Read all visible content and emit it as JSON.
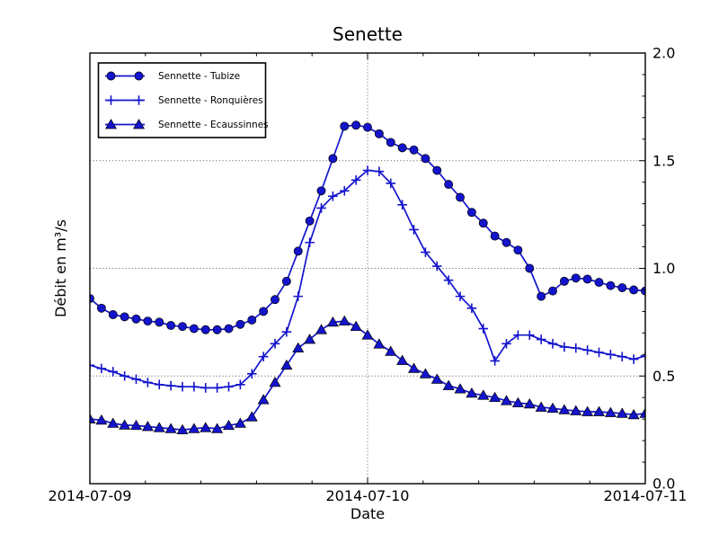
{
  "chart_data": {
    "type": "line",
    "title": "Senette",
    "xlabel": "Date",
    "ylabel": "Débit en m³/s",
    "x_tick_labels": [
      "2014-07-09",
      "2014-07-10",
      "2014-07-11"
    ],
    "y_tick_labels": [
      "0.0",
      "0.5",
      "1.0",
      "1.5",
      "2.0"
    ],
    "ylim": [
      0,
      2
    ],
    "x_span_hours": 48,
    "x_step_hours": 1,
    "x_major_hours": [
      0,
      24,
      48
    ],
    "x_minor_step_hours": 4.8,
    "y_major_step": 0.5,
    "y_minor_step": 0.1,
    "grid": "dotted black lines at major ticks",
    "legend_position": "upper left",
    "y_axis_labels_side": "right",
    "series": [
      {
        "name": "Sennette - Tubize",
        "marker": "circle",
        "values": [
          0.86,
          0.815,
          0.785,
          0.775,
          0.765,
          0.755,
          0.75,
          0.735,
          0.73,
          0.72,
          0.715,
          0.715,
          0.72,
          0.74,
          0.76,
          0.8,
          0.855,
          0.94,
          1.08,
          1.22,
          1.36,
          1.51,
          1.66,
          1.665,
          1.655,
          1.625,
          1.585,
          1.56,
          1.55,
          1.51,
          1.455,
          1.39,
          1.33,
          1.26,
          1.21,
          1.15,
          1.12,
          1.085,
          1.0,
          0.87,
          0.895,
          0.94,
          0.955,
          0.95,
          0.935,
          0.92,
          0.91,
          0.9,
          0.895
        ]
      },
      {
        "name": "Sennette - Ronquières",
        "marker": "plus",
        "values": [
          0.55,
          0.535,
          0.52,
          0.5,
          0.485,
          0.47,
          0.46,
          0.455,
          0.45,
          0.45,
          0.445,
          0.445,
          0.45,
          0.46,
          0.51,
          0.59,
          0.65,
          0.705,
          0.87,
          1.12,
          1.28,
          1.335,
          1.36,
          1.41,
          1.455,
          1.45,
          1.395,
          1.295,
          1.18,
          1.075,
          1.01,
          0.945,
          0.87,
          0.815,
          0.72,
          0.57,
          0.65,
          0.69,
          0.69,
          0.67,
          0.65,
          0.635,
          0.63,
          0.62,
          0.61,
          0.6,
          0.59,
          0.578,
          0.593
        ]
      },
      {
        "name": "Sennette - Ecaussinnes",
        "marker": "triangle",
        "values": [
          0.3,
          0.295,
          0.28,
          0.272,
          0.27,
          0.265,
          0.26,
          0.255,
          0.25,
          0.255,
          0.26,
          0.255,
          0.27,
          0.28,
          0.31,
          0.39,
          0.47,
          0.55,
          0.63,
          0.67,
          0.715,
          0.75,
          0.755,
          0.73,
          0.69,
          0.648,
          0.614,
          0.572,
          0.535,
          0.51,
          0.485,
          0.455,
          0.44,
          0.42,
          0.41,
          0.4,
          0.385,
          0.375,
          0.37,
          0.355,
          0.35,
          0.343,
          0.338,
          0.334,
          0.334,
          0.33,
          0.326,
          0.32,
          0.326
        ]
      }
    ],
    "colors": {
      "line": "#1414cd",
      "marker_fill": "#1414cd",
      "marker_edge": "#000000",
      "grid": "#555555",
      "frame": "#000000"
    }
  }
}
